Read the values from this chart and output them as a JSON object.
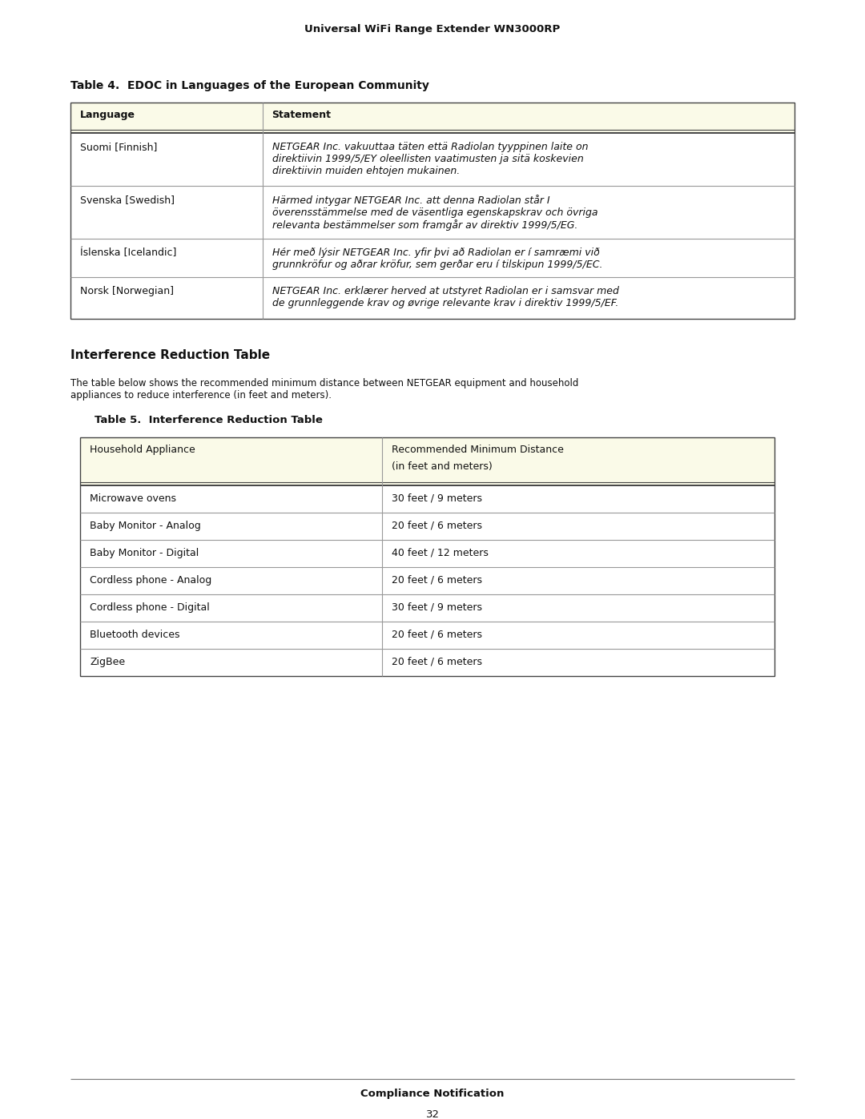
{
  "page_header": "Universal WiFi Range Extender WN3000RP",
  "table4_title": "Table 4.  EDOC in Languages of the European Community",
  "table4_headers": [
    "Language",
    "Statement"
  ],
  "table4_rows": [
    {
      "lang": "Suomi [Finnish]",
      "statement": "NETGEAR Inc. vakuuttaa täten että Radiolan tyyppinen laite on\ndirektiivin 1999/5/EY oleellisten vaatimusten ja sitä koskevien\ndirektiivin muiden ehtojen mukainen."
    },
    {
      "lang": "Svenska [Swedish]",
      "statement": "Härmed intygar NETGEAR Inc. att denna Radiolan står I\növerensstämmelse med de väsentliga egenskapskrav och övriga\nrelevanta bestämmelser som framgår av direktiv 1999/5/EG."
    },
    {
      "lang": "Íslenska [Icelandic]",
      "statement": "Hér með lýsir NETGEAR Inc. yfir þvi að Radiolan er í samræmi við\ngrunnkröfur og aðrar kröfur, sem gerðar eru í tilskipun 1999/5/EC."
    },
    {
      "lang": "Norsk [Norwegian]",
      "statement": "NETGEAR Inc. erklærer herved at utstyret Radiolan er i samsvar med\nde grunnleggende krav og øvrige relevante krav i direktiv 1999/5/EF."
    }
  ],
  "section_heading": "Interference Reduction Table",
  "section_desc": "The table below shows the recommended minimum distance between NETGEAR equipment and household\nappliances to reduce interference (in feet and meters).",
  "table5_title": "Table 5.  Interference Reduction Table",
  "table5_header_col1": "Household Appliance",
  "table5_header_col2_line1": "Recommended Minimum Distance",
  "table5_header_col2_line2": "(in feet and meters)",
  "table5_rows": [
    [
      "Microwave ovens",
      "30 feet / 9 meters"
    ],
    [
      "Baby Monitor - Analog",
      "20 feet / 6 meters"
    ],
    [
      "Baby Monitor - Digital",
      "40 feet / 12 meters"
    ],
    [
      "Cordless phone - Analog",
      "20 feet / 6 meters"
    ],
    [
      "Cordless phone - Digital",
      "30 feet / 9 meters"
    ],
    [
      "Bluetooth devices",
      "20 feet / 6 meters"
    ],
    [
      "ZigBee",
      "20 feet / 6 meters"
    ]
  ],
  "footer_text": "Compliance Notification",
  "footer_page": "32",
  "header_bg": "#fafae8",
  "bg_color": "#ffffff",
  "text_color": "#111111",
  "border_dark": "#444444",
  "border_light": "#999999"
}
